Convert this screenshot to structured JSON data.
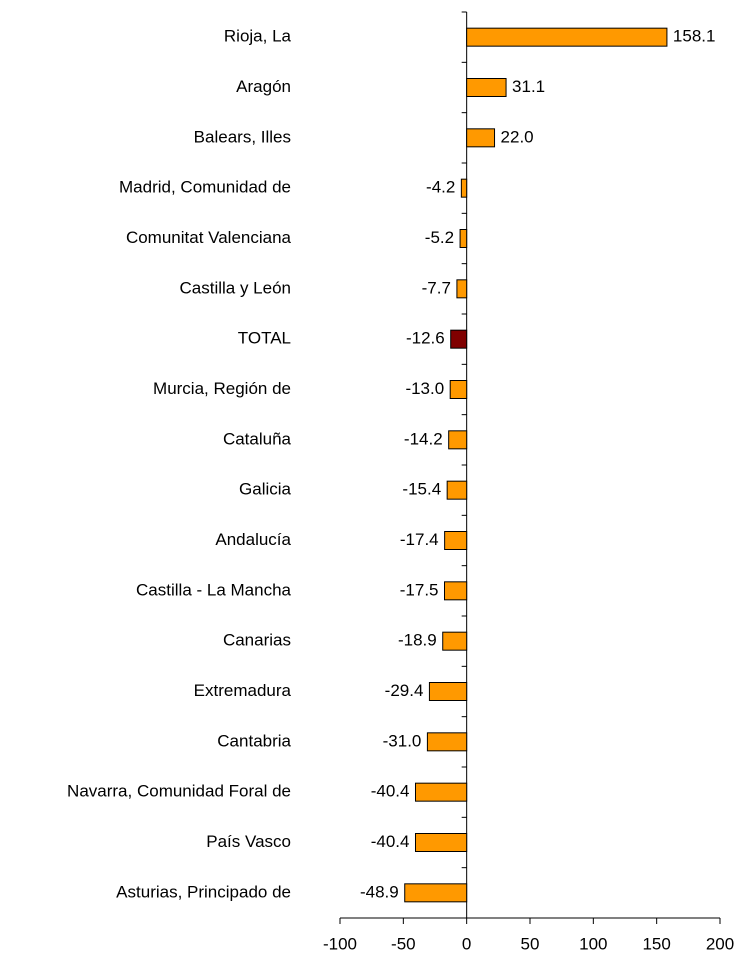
{
  "chart_data": {
    "type": "barh",
    "categories": [
      "Rioja, La",
      "Aragón",
      "Balears, Illes",
      "Madrid, Comunidad de",
      "Comunitat Valenciana",
      "Castilla y León",
      "TOTAL",
      "Murcia, Región de",
      "Cataluña",
      "Galicia",
      "Andalucía",
      "Castilla - La Mancha",
      "Canarias",
      "Extremadura",
      "Cantabria",
      "Navarra, Comunidad Foral de",
      "País Vasco",
      "Asturias, Principado de"
    ],
    "values": [
      158.1,
      31.1,
      22.0,
      -4.2,
      -5.2,
      -7.7,
      -12.6,
      -13.0,
      -14.2,
      -15.4,
      -17.4,
      -17.5,
      -18.9,
      -29.4,
      -31.0,
      -40.4,
      -40.4,
      -48.9
    ],
    "value_labels": [
      "158.1",
      "31.1",
      "22.0",
      "-4.2",
      "-5.2",
      "-7.7",
      "-12.6",
      "-13.0",
      "-14.2",
      "-15.4",
      "-17.4",
      "-17.5",
      "-18.9",
      "-29.4",
      "-31.0",
      "-40.4",
      "-40.4",
      "-48.9"
    ],
    "colors": [
      "#ff9900",
      "#ff9900",
      "#ff9900",
      "#ff9900",
      "#ff9900",
      "#ff9900",
      "#800000",
      "#ff9900",
      "#ff9900",
      "#ff9900",
      "#ff9900",
      "#ff9900",
      "#ff9900",
      "#ff9900",
      "#ff9900",
      "#ff9900",
      "#ff9900",
      "#ff9900"
    ],
    "xlim": [
      -100,
      200
    ],
    "xticks": [
      -100,
      -50,
      0,
      50,
      100,
      150,
      200
    ],
    "grid": false
  }
}
